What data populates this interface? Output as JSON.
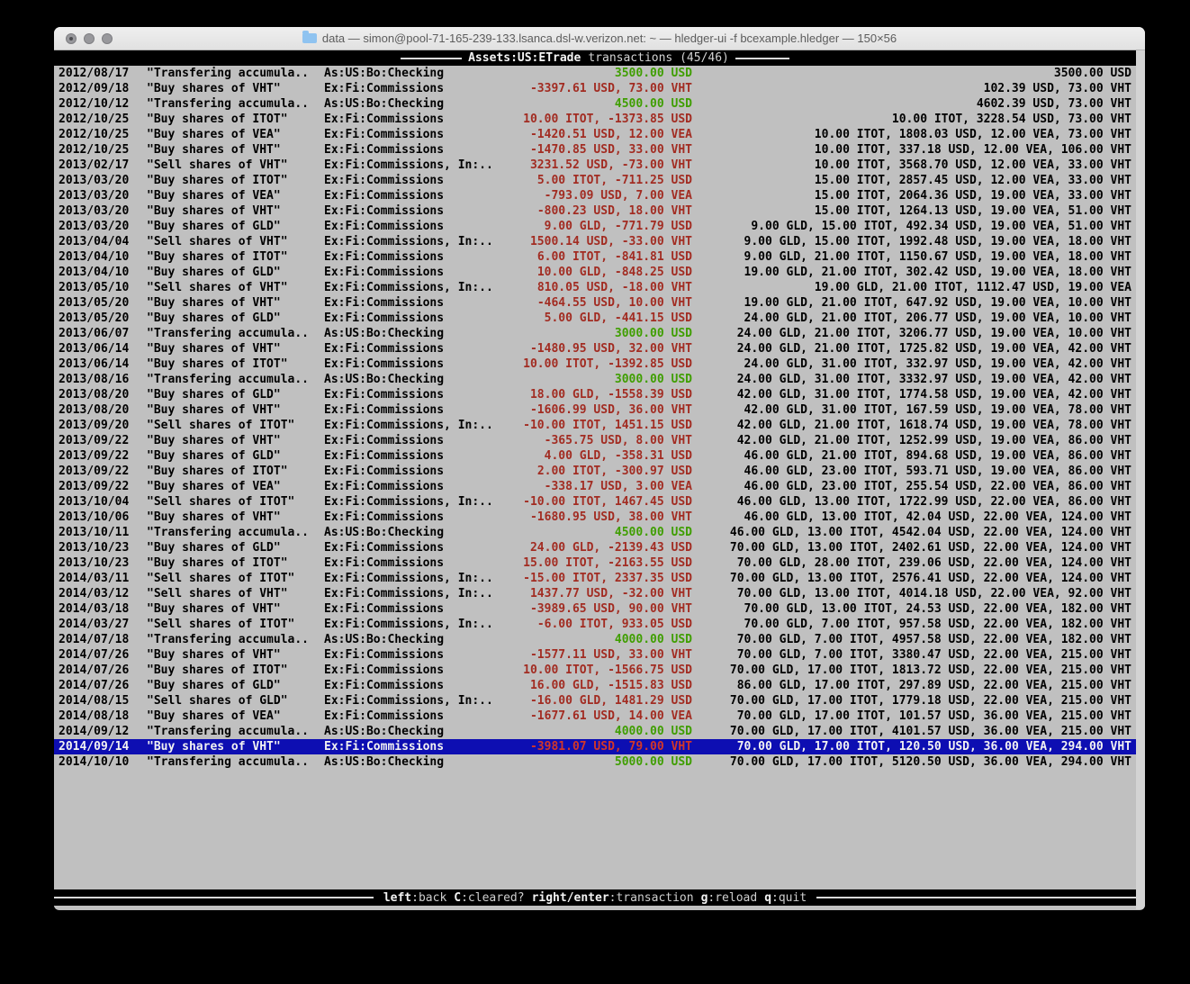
{
  "titlebar": {
    "title": "data — simon@pool-71-165-239-133.lsanca.dsl-w.verizon.net: ~ — hledger-ui -f bcexample.hledger — 150×56"
  },
  "screen_header": {
    "account": "Assets:US:ETrade",
    "rest": "transactions (45/46)"
  },
  "footer": {
    "hints": [
      {
        "key": "left",
        "desc": ":back"
      },
      {
        "key": "C",
        "desc": ":cleared?"
      },
      {
        "key": "right/enter",
        "desc": ":transaction"
      },
      {
        "key": "g",
        "desc": ":reload"
      },
      {
        "key": "q",
        "desc": ":quit"
      }
    ]
  },
  "colors": {
    "terminal_bg": "#c0c0c0",
    "selection_bg": "#0d0eb2",
    "amount_negative": "#a22c22",
    "amount_positive": "#3f9e00"
  },
  "transactions": [
    {
      "date": "2012/08/17",
      "description": "\"Transfering accumula..",
      "other_accounts": "As:US:Bo:Checking",
      "change": "3500.00 USD",
      "change_color": "green",
      "balance": "3500.00 USD"
    },
    {
      "date": "2012/09/18",
      "description": "\"Buy shares of VHT\"",
      "other_accounts": "Ex:Fi:Commissions",
      "change": "-3397.61 USD, 73.00 VHT",
      "change_color": "red",
      "balance": "102.39 USD, 73.00 VHT"
    },
    {
      "date": "2012/10/12",
      "description": "\"Transfering accumula..",
      "other_accounts": "As:US:Bo:Checking",
      "change": "4500.00 USD",
      "change_color": "green",
      "balance": "4602.39 USD, 73.00 VHT"
    },
    {
      "date": "2012/10/25",
      "description": "\"Buy shares of ITOT\"",
      "other_accounts": "Ex:Fi:Commissions",
      "change": "10.00 ITOT, -1373.85 USD",
      "change_color": "red",
      "balance": "10.00 ITOT, 3228.54 USD, 73.00 VHT"
    },
    {
      "date": "2012/10/25",
      "description": "\"Buy shares of VEA\"",
      "other_accounts": "Ex:Fi:Commissions",
      "change": "-1420.51 USD, 12.00 VEA",
      "change_color": "red",
      "balance": "10.00 ITOT, 1808.03 USD, 12.00 VEA, 73.00 VHT"
    },
    {
      "date": "2012/10/25",
      "description": "\"Buy shares of VHT\"",
      "other_accounts": "Ex:Fi:Commissions",
      "change": "-1470.85 USD, 33.00 VHT",
      "change_color": "red",
      "balance": "10.00 ITOT, 337.18 USD, 12.00 VEA, 106.00 VHT"
    },
    {
      "date": "2013/02/17",
      "description": "\"Sell shares of VHT\"",
      "other_accounts": "Ex:Fi:Commissions, In:..",
      "change": "3231.52 USD, -73.00 VHT",
      "change_color": "red",
      "balance": "10.00 ITOT, 3568.70 USD, 12.00 VEA, 33.00 VHT"
    },
    {
      "date": "2013/03/20",
      "description": "\"Buy shares of ITOT\"",
      "other_accounts": "Ex:Fi:Commissions",
      "change": "5.00 ITOT, -711.25 USD",
      "change_color": "red",
      "balance": "15.00 ITOT, 2857.45 USD, 12.00 VEA, 33.00 VHT"
    },
    {
      "date": "2013/03/20",
      "description": "\"Buy shares of VEA\"",
      "other_accounts": "Ex:Fi:Commissions",
      "change": "-793.09 USD, 7.00 VEA",
      "change_color": "red",
      "balance": "15.00 ITOT, 2064.36 USD, 19.00 VEA, 33.00 VHT"
    },
    {
      "date": "2013/03/20",
      "description": "\"Buy shares of VHT\"",
      "other_accounts": "Ex:Fi:Commissions",
      "change": "-800.23 USD, 18.00 VHT",
      "change_color": "red",
      "balance": "15.00 ITOT, 1264.13 USD, 19.00 VEA, 51.00 VHT"
    },
    {
      "date": "2013/03/20",
      "description": "\"Buy shares of GLD\"",
      "other_accounts": "Ex:Fi:Commissions",
      "change": "9.00 GLD, -771.79 USD",
      "change_color": "red",
      "balance": "9.00 GLD, 15.00 ITOT, 492.34 USD, 19.00 VEA, 51.00 VHT"
    },
    {
      "date": "2013/04/04",
      "description": "\"Sell shares of VHT\"",
      "other_accounts": "Ex:Fi:Commissions, In:..",
      "change": "1500.14 USD, -33.00 VHT",
      "change_color": "red",
      "balance": "9.00 GLD, 15.00 ITOT, 1992.48 USD, 19.00 VEA, 18.00 VHT"
    },
    {
      "date": "2013/04/10",
      "description": "\"Buy shares of ITOT\"",
      "other_accounts": "Ex:Fi:Commissions",
      "change": "6.00 ITOT, -841.81 USD",
      "change_color": "red",
      "balance": "9.00 GLD, 21.00 ITOT, 1150.67 USD, 19.00 VEA, 18.00 VHT"
    },
    {
      "date": "2013/04/10",
      "description": "\"Buy shares of GLD\"",
      "other_accounts": "Ex:Fi:Commissions",
      "change": "10.00 GLD, -848.25 USD",
      "change_color": "red",
      "balance": "19.00 GLD, 21.00 ITOT, 302.42 USD, 19.00 VEA, 18.00 VHT"
    },
    {
      "date": "2013/05/10",
      "description": "\"Sell shares of VHT\"",
      "other_accounts": "Ex:Fi:Commissions, In:..",
      "change": "810.05 USD, -18.00 VHT",
      "change_color": "red",
      "balance": "19.00 GLD, 21.00 ITOT, 1112.47 USD, 19.00 VEA"
    },
    {
      "date": "2013/05/20",
      "description": "\"Buy shares of VHT\"",
      "other_accounts": "Ex:Fi:Commissions",
      "change": "-464.55 USD, 10.00 VHT",
      "change_color": "red",
      "balance": "19.00 GLD, 21.00 ITOT, 647.92 USD, 19.00 VEA, 10.00 VHT"
    },
    {
      "date": "2013/05/20",
      "description": "\"Buy shares of GLD\"",
      "other_accounts": "Ex:Fi:Commissions",
      "change": "5.00 GLD, -441.15 USD",
      "change_color": "red",
      "balance": "24.00 GLD, 21.00 ITOT, 206.77 USD, 19.00 VEA, 10.00 VHT"
    },
    {
      "date": "2013/06/07",
      "description": "\"Transfering accumula..",
      "other_accounts": "As:US:Bo:Checking",
      "change": "3000.00 USD",
      "change_color": "green",
      "balance": "24.00 GLD, 21.00 ITOT, 3206.77 USD, 19.00 VEA, 10.00 VHT"
    },
    {
      "date": "2013/06/14",
      "description": "\"Buy shares of VHT\"",
      "other_accounts": "Ex:Fi:Commissions",
      "change": "-1480.95 USD, 32.00 VHT",
      "change_color": "red",
      "balance": "24.00 GLD, 21.00 ITOT, 1725.82 USD, 19.00 VEA, 42.00 VHT"
    },
    {
      "date": "2013/06/14",
      "description": "\"Buy shares of ITOT\"",
      "other_accounts": "Ex:Fi:Commissions",
      "change": "10.00 ITOT, -1392.85 USD",
      "change_color": "red",
      "balance": "24.00 GLD, 31.00 ITOT, 332.97 USD, 19.00 VEA, 42.00 VHT"
    },
    {
      "date": "2013/08/16",
      "description": "\"Transfering accumula..",
      "other_accounts": "As:US:Bo:Checking",
      "change": "3000.00 USD",
      "change_color": "green",
      "balance": "24.00 GLD, 31.00 ITOT, 3332.97 USD, 19.00 VEA, 42.00 VHT"
    },
    {
      "date": "2013/08/20",
      "description": "\"Buy shares of GLD\"",
      "other_accounts": "Ex:Fi:Commissions",
      "change": "18.00 GLD, -1558.39 USD",
      "change_color": "red",
      "balance": "42.00 GLD, 31.00 ITOT, 1774.58 USD, 19.00 VEA, 42.00 VHT"
    },
    {
      "date": "2013/08/20",
      "description": "\"Buy shares of VHT\"",
      "other_accounts": "Ex:Fi:Commissions",
      "change": "-1606.99 USD, 36.00 VHT",
      "change_color": "red",
      "balance": "42.00 GLD, 31.00 ITOT, 167.59 USD, 19.00 VEA, 78.00 VHT"
    },
    {
      "date": "2013/09/20",
      "description": "\"Sell shares of ITOT\"",
      "other_accounts": "Ex:Fi:Commissions, In:..",
      "change": "-10.00 ITOT, 1451.15 USD",
      "change_color": "red",
      "balance": "42.00 GLD, 21.00 ITOT, 1618.74 USD, 19.00 VEA, 78.00 VHT"
    },
    {
      "date": "2013/09/22",
      "description": "\"Buy shares of VHT\"",
      "other_accounts": "Ex:Fi:Commissions",
      "change": "-365.75 USD, 8.00 VHT",
      "change_color": "red",
      "balance": "42.00 GLD, 21.00 ITOT, 1252.99 USD, 19.00 VEA, 86.00 VHT"
    },
    {
      "date": "2013/09/22",
      "description": "\"Buy shares of GLD\"",
      "other_accounts": "Ex:Fi:Commissions",
      "change": "4.00 GLD, -358.31 USD",
      "change_color": "red",
      "balance": "46.00 GLD, 21.00 ITOT, 894.68 USD, 19.00 VEA, 86.00 VHT"
    },
    {
      "date": "2013/09/22",
      "description": "\"Buy shares of ITOT\"",
      "other_accounts": "Ex:Fi:Commissions",
      "change": "2.00 ITOT, -300.97 USD",
      "change_color": "red",
      "balance": "46.00 GLD, 23.00 ITOT, 593.71 USD, 19.00 VEA, 86.00 VHT"
    },
    {
      "date": "2013/09/22",
      "description": "\"Buy shares of VEA\"",
      "other_accounts": "Ex:Fi:Commissions",
      "change": "-338.17 USD, 3.00 VEA",
      "change_color": "red",
      "balance": "46.00 GLD, 23.00 ITOT, 255.54 USD, 22.00 VEA, 86.00 VHT"
    },
    {
      "date": "2013/10/04",
      "description": "\"Sell shares of ITOT\"",
      "other_accounts": "Ex:Fi:Commissions, In:..",
      "change": "-10.00 ITOT, 1467.45 USD",
      "change_color": "red",
      "balance": "46.00 GLD, 13.00 ITOT, 1722.99 USD, 22.00 VEA, 86.00 VHT"
    },
    {
      "date": "2013/10/06",
      "description": "\"Buy shares of VHT\"",
      "other_accounts": "Ex:Fi:Commissions",
      "change": "-1680.95 USD, 38.00 VHT",
      "change_color": "red",
      "balance": "46.00 GLD, 13.00 ITOT, 42.04 USD, 22.00 VEA, 124.00 VHT"
    },
    {
      "date": "2013/10/11",
      "description": "\"Transfering accumula..",
      "other_accounts": "As:US:Bo:Checking",
      "change": "4500.00 USD",
      "change_color": "green",
      "balance": "46.00 GLD, 13.00 ITOT, 4542.04 USD, 22.00 VEA, 124.00 VHT"
    },
    {
      "date": "2013/10/23",
      "description": "\"Buy shares of GLD\"",
      "other_accounts": "Ex:Fi:Commissions",
      "change": "24.00 GLD, -2139.43 USD",
      "change_color": "red",
      "balance": "70.00 GLD, 13.00 ITOT, 2402.61 USD, 22.00 VEA, 124.00 VHT"
    },
    {
      "date": "2013/10/23",
      "description": "\"Buy shares of ITOT\"",
      "other_accounts": "Ex:Fi:Commissions",
      "change": "15.00 ITOT, -2163.55 USD",
      "change_color": "red",
      "balance": "70.00 GLD, 28.00 ITOT, 239.06 USD, 22.00 VEA, 124.00 VHT"
    },
    {
      "date": "2014/03/11",
      "description": "\"Sell shares of ITOT\"",
      "other_accounts": "Ex:Fi:Commissions, In:..",
      "change": "-15.00 ITOT, 2337.35 USD",
      "change_color": "red",
      "balance": "70.00 GLD, 13.00 ITOT, 2576.41 USD, 22.00 VEA, 124.00 VHT"
    },
    {
      "date": "2014/03/12",
      "description": "\"Sell shares of VHT\"",
      "other_accounts": "Ex:Fi:Commissions, In:..",
      "change": "1437.77 USD, -32.00 VHT",
      "change_color": "red",
      "balance": "70.00 GLD, 13.00 ITOT, 4014.18 USD, 22.00 VEA, 92.00 VHT"
    },
    {
      "date": "2014/03/18",
      "description": "\"Buy shares of VHT\"",
      "other_accounts": "Ex:Fi:Commissions",
      "change": "-3989.65 USD, 90.00 VHT",
      "change_color": "red",
      "balance": "70.00 GLD, 13.00 ITOT, 24.53 USD, 22.00 VEA, 182.00 VHT"
    },
    {
      "date": "2014/03/27",
      "description": "\"Sell shares of ITOT\"",
      "other_accounts": "Ex:Fi:Commissions, In:..",
      "change": "-6.00 ITOT, 933.05 USD",
      "change_color": "red",
      "balance": "70.00 GLD, 7.00 ITOT, 957.58 USD, 22.00 VEA, 182.00 VHT"
    },
    {
      "date": "2014/07/18",
      "description": "\"Transfering accumula..",
      "other_accounts": "As:US:Bo:Checking",
      "change": "4000.00 USD",
      "change_color": "green",
      "balance": "70.00 GLD, 7.00 ITOT, 4957.58 USD, 22.00 VEA, 182.00 VHT"
    },
    {
      "date": "2014/07/26",
      "description": "\"Buy shares of VHT\"",
      "other_accounts": "Ex:Fi:Commissions",
      "change": "-1577.11 USD, 33.00 VHT",
      "change_color": "red",
      "balance": "70.00 GLD, 7.00 ITOT, 3380.47 USD, 22.00 VEA, 215.00 VHT"
    },
    {
      "date": "2014/07/26",
      "description": "\"Buy shares of ITOT\"",
      "other_accounts": "Ex:Fi:Commissions",
      "change": "10.00 ITOT, -1566.75 USD",
      "change_color": "red",
      "balance": "70.00 GLD, 17.00 ITOT, 1813.72 USD, 22.00 VEA, 215.00 VHT"
    },
    {
      "date": "2014/07/26",
      "description": "\"Buy shares of GLD\"",
      "other_accounts": "Ex:Fi:Commissions",
      "change": "16.00 GLD, -1515.83 USD",
      "change_color": "red",
      "balance": "86.00 GLD, 17.00 ITOT, 297.89 USD, 22.00 VEA, 215.00 VHT"
    },
    {
      "date": "2014/08/15",
      "description": "\"Sell shares of GLD\"",
      "other_accounts": "Ex:Fi:Commissions, In:..",
      "change": "-16.00 GLD, 1481.29 USD",
      "change_color": "red",
      "balance": "70.00 GLD, 17.00 ITOT, 1779.18 USD, 22.00 VEA, 215.00 VHT"
    },
    {
      "date": "2014/08/18",
      "description": "\"Buy shares of VEA\"",
      "other_accounts": "Ex:Fi:Commissions",
      "change": "-1677.61 USD, 14.00 VEA",
      "change_color": "red",
      "balance": "70.00 GLD, 17.00 ITOT, 101.57 USD, 36.00 VEA, 215.00 VHT"
    },
    {
      "date": "2014/09/12",
      "description": "\"Transfering accumula..",
      "other_accounts": "As:US:Bo:Checking",
      "change": "4000.00 USD",
      "change_color": "green",
      "balance": "70.00 GLD, 17.00 ITOT, 4101.57 USD, 36.00 VEA, 215.00 VHT"
    },
    {
      "date": "2014/09/14",
      "description": "\"Buy shares of VHT\"",
      "other_accounts": "Ex:Fi:Commissions",
      "change": "-3981.07 USD, 79.00 VHT",
      "change_color": "red",
      "balance": "70.00 GLD, 17.00 ITOT, 120.50 USD, 36.00 VEA, 294.00 VHT",
      "selected": true
    },
    {
      "date": "2014/10/10",
      "description": "\"Transfering accumula..",
      "other_accounts": "As:US:Bo:Checking",
      "change": "5000.00 USD",
      "change_color": "green",
      "balance": "70.00 GLD, 17.00 ITOT, 5120.50 USD, 36.00 VEA, 294.00 VHT"
    }
  ]
}
